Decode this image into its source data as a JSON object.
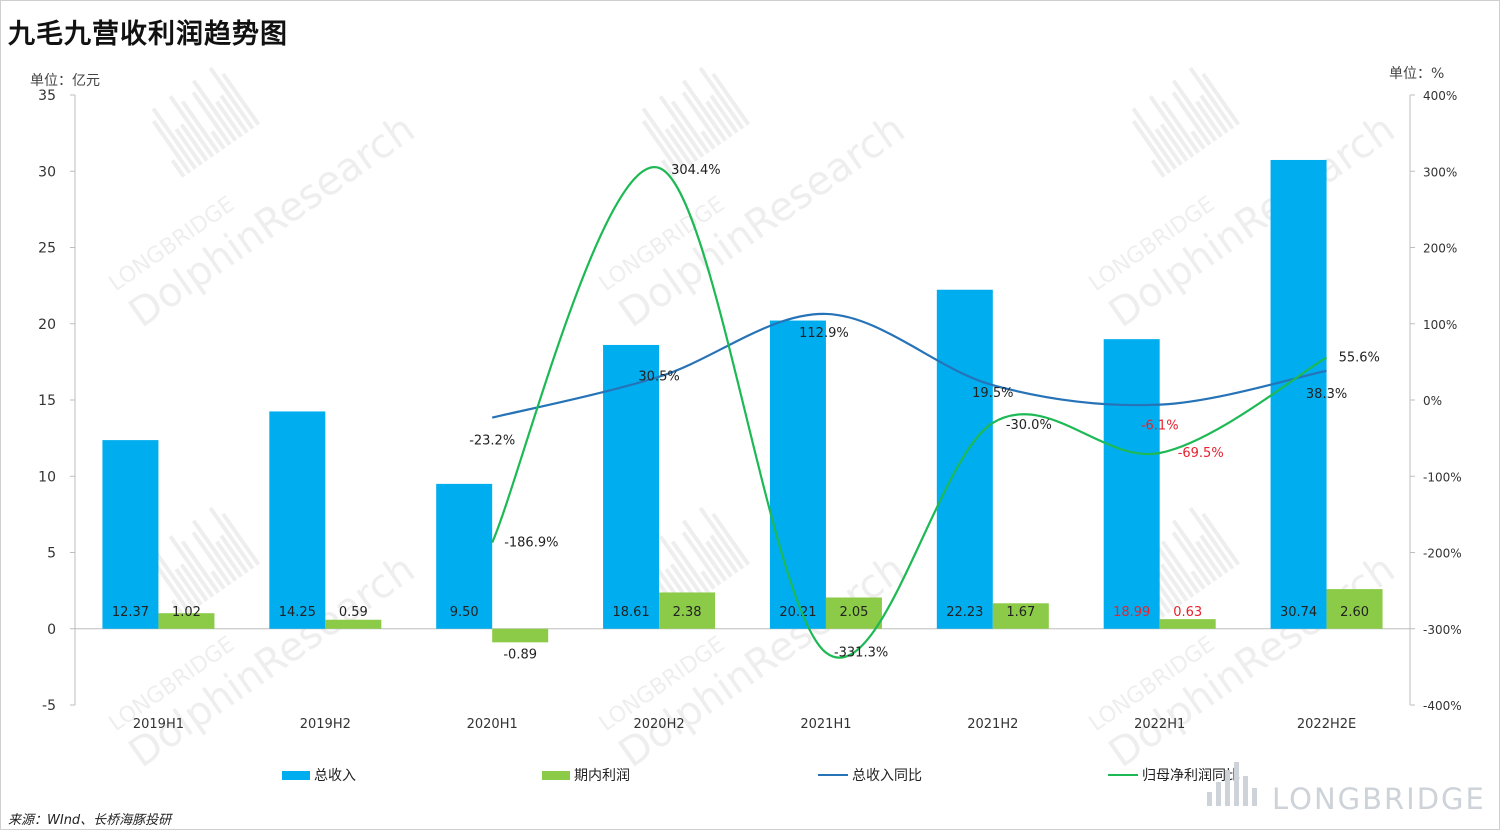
{
  "title": "九毛九营收利润趋势图",
  "unit_left": "单位：亿元",
  "unit_right": "单位：%",
  "source": "来源：WInd、长桥海豚投研",
  "brand": "LONGBRIDGE",
  "watermark": {
    "line1": "LONGBRIDGE",
    "line2": "DolphinResearch"
  },
  "colors": {
    "revenue": "#00AEEF",
    "profit": "#8CCB47",
    "revenue_yoy": "#2673B8",
    "profit_yoy": "#1DB954",
    "negative_label": "#E8222F"
  },
  "chart_data": {
    "type": "bar",
    "categories": [
      "2019H1",
      "2019H2",
      "2020H1",
      "2020H2",
      "2021H1",
      "2021H2",
      "2022H1",
      "2022H2E"
    ],
    "left_axis": {
      "ylim": [
        -5,
        35
      ],
      "ticks": [
        "-5",
        "0",
        "5",
        "10",
        "15",
        "20",
        "25",
        "30",
        "35"
      ]
    },
    "right_axis": {
      "ylim": [
        -400,
        400
      ],
      "ticks": [
        "-400%",
        "-300%",
        "-200%",
        "-100%",
        "0%",
        "100%",
        "200%",
        "300%",
        "400%"
      ]
    },
    "series": [
      {
        "name": "总收入",
        "kind": "bar",
        "axis": "left",
        "values": [
          12.37,
          14.25,
          9.5,
          18.61,
          20.21,
          22.23,
          18.99,
          30.74
        ],
        "labels": [
          "12.37",
          "14.25",
          "9.50",
          "18.61",
          "20.21",
          "22.23",
          "18.99",
          "30.74"
        ],
        "highlight_label": [
          false,
          false,
          false,
          false,
          false,
          false,
          true,
          false
        ]
      },
      {
        "name": "期内利润",
        "kind": "bar",
        "axis": "left",
        "values": [
          1.02,
          0.59,
          -0.89,
          2.38,
          2.05,
          1.67,
          0.63,
          2.6
        ],
        "labels": [
          "1.02",
          "0.59",
          "-0.89",
          "2.38",
          "2.05",
          "1.67",
          "0.63",
          "2.60"
        ],
        "highlight_label": [
          false,
          false,
          false,
          false,
          false,
          false,
          true,
          false
        ]
      },
      {
        "name": "总收入同比",
        "kind": "line",
        "axis": "right",
        "values": [
          null,
          null,
          -23.2,
          30.5,
          112.9,
          19.5,
          -6.1,
          38.3
        ],
        "labels": [
          "",
          "",
          "-23.2%",
          "30.5%",
          "112.9%",
          "19.5%",
          "-6.1%",
          "38.3%"
        ],
        "highlight_label": [
          false,
          false,
          false,
          false,
          false,
          false,
          true,
          false
        ]
      },
      {
        "name": "归母净利润同比",
        "kind": "line",
        "axis": "right",
        "values": [
          null,
          null,
          -186.9,
          304.4,
          -331.3,
          -30.0,
          -69.5,
          55.6
        ],
        "labels": [
          "",
          "",
          "-186.9%",
          "304.4%",
          "-331.3%",
          "-30.0%",
          "-69.5%",
          "55.6%"
        ],
        "highlight_label": [
          false,
          false,
          false,
          false,
          false,
          false,
          true,
          false
        ]
      }
    ],
    "legend": [
      "总收入",
      "期内利润",
      "总收入同比",
      "归母净利润同比"
    ],
    "legend_position": "bottom",
    "grid": false
  }
}
